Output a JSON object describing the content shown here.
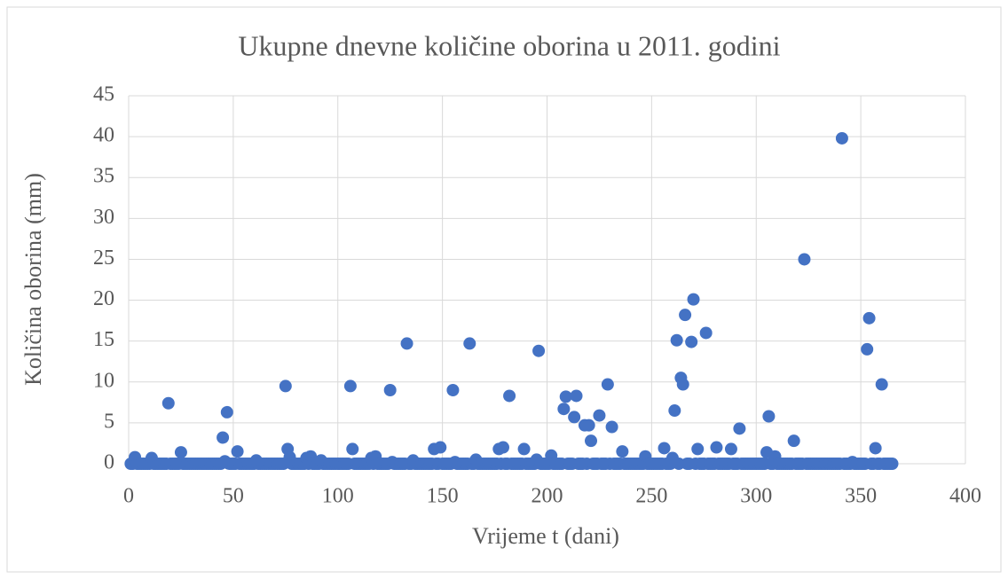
{
  "chart_data": {
    "type": "scatter",
    "title": "Ukupne dnevne količine oborina u 2011. godini",
    "x_label": "Vrijeme t (dani)",
    "y_label": "Količina oborina (mm)",
    "color": "#4472c4",
    "grid": true,
    "xlim": [
      0,
      400
    ],
    "xticks": [
      0,
      50,
      100,
      150,
      200,
      250,
      300,
      350,
      400
    ],
    "ylim": [
      0,
      45
    ],
    "yticks": [
      0,
      5,
      10,
      15,
      20,
      25,
      30,
      35,
      40,
      45
    ],
    "x": [
      1,
      2,
      3,
      4,
      5,
      6,
      7,
      8,
      9,
      10,
      11,
      12,
      13,
      14,
      15,
      16,
      17,
      18,
      19,
      20,
      21,
      22,
      23,
      24,
      25,
      26,
      27,
      28,
      29,
      30,
      31,
      32,
      33,
      34,
      35,
      36,
      37,
      38,
      39,
      40,
      41,
      42,
      43,
      44,
      45,
      46,
      47,
      48,
      49,
      50,
      51,
      52,
      53,
      54,
      55,
      56,
      57,
      58,
      59,
      60,
      61,
      62,
      63,
      64,
      65,
      66,
      67,
      68,
      69,
      70,
      71,
      72,
      73,
      74,
      75,
      76,
      77,
      78,
      79,
      80,
      81,
      82,
      83,
      84,
      85,
      86,
      87,
      88,
      89,
      90,
      91,
      92,
      93,
      94,
      95,
      96,
      97,
      98,
      99,
      100,
      101,
      102,
      103,
      104,
      105,
      106,
      107,
      108,
      109,
      110,
      111,
      112,
      113,
      114,
      115,
      116,
      117,
      118,
      119,
      120,
      121,
      122,
      123,
      124,
      125,
      126,
      127,
      128,
      129,
      130,
      131,
      132,
      133,
      134,
      135,
      136,
      137,
      138,
      139,
      140,
      141,
      142,
      143,
      144,
      145,
      146,
      147,
      148,
      149,
      150,
      151,
      152,
      153,
      154,
      155,
      156,
      157,
      158,
      159,
      160,
      161,
      162,
      163,
      164,
      165,
      166,
      167,
      168,
      169,
      170,
      171,
      172,
      173,
      174,
      175,
      176,
      177,
      178,
      179,
      180,
      181,
      182,
      183,
      184,
      185,
      186,
      187,
      188,
      189,
      190,
      191,
      192,
      193,
      194,
      195,
      196,
      197,
      198,
      199,
      200,
      201,
      202,
      203,
      204,
      205,
      206,
      207,
      208,
      209,
      210,
      211,
      212,
      213,
      214,
      215,
      216,
      217,
      218,
      219,
      220,
      221,
      222,
      223,
      224,
      225,
      226,
      227,
      228,
      229,
      230,
      231,
      232,
      233,
      234,
      235,
      236,
      237,
      238,
      239,
      240,
      241,
      242,
      243,
      244,
      245,
      246,
      247,
      248,
      249,
      250,
      251,
      252,
      253,
      254,
      255,
      256,
      257,
      258,
      259,
      260,
      261,
      262,
      263,
      264,
      265,
      266,
      267,
      268,
      269,
      270,
      271,
      272,
      273,
      274,
      275,
      276,
      277,
      278,
      279,
      280,
      281,
      282,
      283,
      284,
      285,
      286,
      287,
      288,
      289,
      290,
      291,
      292,
      293,
      294,
      295,
      296,
      297,
      298,
      299,
      300,
      301,
      302,
      303,
      304,
      305,
      306,
      307,
      308,
      309,
      310,
      311,
      312,
      313,
      314,
      315,
      316,
      317,
      318,
      319,
      320,
      321,
      322,
      323,
      324,
      325,
      326,
      327,
      328,
      329,
      330,
      331,
      332,
      333,
      334,
      335,
      336,
      337,
      338,
      339,
      340,
      341,
      342,
      343,
      344,
      345,
      346,
      347,
      348,
      349,
      350,
      351,
      352,
      353,
      354,
      355,
      356,
      357,
      358,
      359,
      360,
      361,
      362,
      363,
      364,
      365
    ],
    "values": [
      0,
      0,
      0.8,
      0,
      0,
      0,
      0,
      0,
      0,
      0,
      0.7,
      0,
      0,
      0,
      0,
      0,
      0,
      0,
      7.4,
      0,
      0,
      0,
      0,
      0,
      1.4,
      0,
      0,
      0,
      0,
      0,
      0,
      0,
      0,
      0,
      0,
      0,
      0,
      0,
      0,
      0,
      0,
      0,
      0,
      0,
      3.2,
      0.3,
      6.3,
      0,
      0,
      0,
      0,
      1.5,
      0,
      0,
      0,
      0,
      0,
      0,
      0,
      0,
      0.4,
      0,
      0,
      0,
      0,
      0,
      0,
      0,
      0,
      0,
      0,
      0,
      0,
      0,
      9.5,
      1.8,
      0.8,
      0,
      0,
      0,
      0,
      0,
      0,
      0,
      0.7,
      0,
      0.9,
      0,
      0,
      0,
      0,
      0.4,
      0,
      0,
      0,
      0,
      0,
      0,
      0,
      0,
      0,
      0,
      0,
      0,
      0,
      9.5,
      1.8,
      0,
      0,
      0,
      0,
      0,
      0,
      0,
      0,
      0.7,
      0,
      0.9,
      0,
      0,
      0,
      0,
      0,
      0,
      9,
      0.2,
      0,
      0,
      0,
      0,
      0,
      0,
      14.7,
      0,
      0,
      0.4,
      0,
      0,
      0,
      0,
      0,
      0,
      0,
      0,
      0,
      1.8,
      0,
      0,
      2,
      0,
      0,
      0,
      0,
      0,
      9,
      0.2,
      0,
      0,
      0,
      0,
      0,
      0,
      14.7,
      0,
      0,
      0.5,
      0,
      0,
      0,
      0,
      0,
      0,
      0,
      0,
      0,
      0,
      1.8,
      0,
      2,
      0,
      0,
      8.3,
      0,
      0,
      0,
      0,
      0,
      0,
      1.8,
      0,
      0,
      0,
      0,
      0,
      0.5,
      13.8,
      0,
      0,
      0,
      0,
      0,
      1,
      0,
      0,
      0,
      0,
      0,
      6.7,
      8.2,
      0,
      0,
      0,
      5.7,
      8.3,
      0,
      0,
      0,
      4.7,
      0,
      4.7,
      2.8,
      0,
      0,
      0,
      5.9,
      0,
      0,
      0,
      9.7,
      0,
      4.5,
      0,
      0,
      0,
      0,
      1.5,
      0,
      0,
      0,
      0,
      0,
      0,
      0,
      0,
      0,
      0,
      0.9,
      0,
      0,
      0,
      0,
      0,
      0,
      0,
      0,
      1.9,
      0,
      0,
      0,
      0.7,
      6.5,
      15.1,
      0,
      10.5,
      9.7,
      18.2,
      0,
      0,
      14.9,
      20.1,
      0,
      1.8,
      0,
      0,
      0,
      16,
      0,
      0,
      0,
      0,
      2,
      0,
      0,
      0,
      0,
      0,
      0,
      1.8,
      0,
      0,
      0,
      4.3,
      0,
      0,
      0,
      0,
      0,
      0,
      0,
      0,
      0,
      0,
      0,
      0,
      1.4,
      5.8,
      0,
      0,
      0.9,
      0,
      0,
      0,
      0,
      0,
      0,
      0,
      0,
      2.8,
      0,
      0,
      0,
      0,
      25,
      0,
      0,
      0,
      0,
      0,
      0,
      0,
      0,
      0,
      0,
      0,
      0,
      0,
      0,
      0,
      0,
      0,
      39.8,
      0,
      0,
      0,
      0,
      0.2,
      0,
      0,
      0,
      0,
      0,
      0,
      14,
      17.8,
      0,
      0,
      1.9,
      0,
      0,
      9.7,
      0,
      0,
      0,
      0,
      0
    ]
  }
}
